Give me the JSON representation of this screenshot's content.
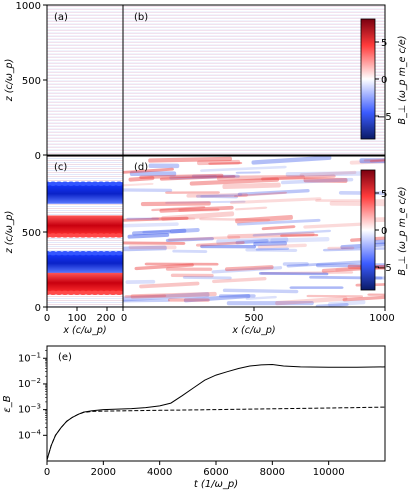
{
  "chart_data": [
    {
      "type": "heatmap",
      "panels": [
        "(a)",
        "(b)",
        "(c)",
        "(d)"
      ],
      "ylabel": "z (c/ω_p)",
      "xlabel": "x (c/ω_p)",
      "y_ticks": [
        "0",
        "500",
        "1000"
      ],
      "x_ticks_left": [
        "0",
        "100",
        "200"
      ],
      "x_ticks_right": [
        "0",
        "500",
        "1000"
      ],
      "ylim": [
        0,
        1000
      ],
      "xlim_left": [
        0,
        250
      ],
      "xlim_right": [
        0,
        1000
      ],
      "colorbar": {
        "label": "B_⊥ (ω_p m_e c/e)",
        "ticks": [
          "5",
          "0",
          "−5"
        ],
        "range": [
          -8,
          8
        ],
        "colormap": "seismic",
        "colors": {
          "low": "#0a1a66",
          "mid_low": "#3b5bff",
          "zero": "#ffffff",
          "mid_high": "#ff3b3b",
          "high": "#7a0010"
        }
      },
      "features": {
        "panel_c_structures": [
          {
            "z": 750,
            "sign": "negative"
          },
          {
            "z": 540,
            "sign": "positive"
          },
          {
            "z": 290,
            "sign": "negative"
          },
          {
            "z": 160,
            "sign": "positive"
          }
        ]
      }
    },
    {
      "type": "line",
      "panel": "(e)",
      "xlabel": "t (1/ω_p)",
      "ylabel": "ε_B",
      "x_ticks": [
        "0",
        "2000",
        "4000",
        "6000",
        "8000",
        "10000"
      ],
      "y_ticks": [
        "10^{-4}",
        "10^{-3}",
        "10^{-2}",
        "10^{-1}"
      ],
      "yscale": "log",
      "xlim": [
        0,
        12000
      ],
      "ylim": [
        1e-05,
        0.3
      ],
      "series": [
        {
          "style": "solid",
          "x": [
            0,
            150,
            300,
            500,
            700,
            900,
            1100,
            1300,
            1600,
            2000,
            2500,
            3000,
            3500,
            4000,
            4400,
            4800,
            5200,
            5600,
            6000,
            6400,
            6800,
            7200,
            7600,
            8000,
            8400,
            9000,
            10000,
            11000,
            12000
          ],
          "y": [
            1.1e-05,
            4e-05,
            0.0001,
            0.0002,
            0.00035,
            0.0005,
            0.00065,
            0.0008,
            0.0009,
            0.001,
            0.00105,
            0.0011,
            0.0012,
            0.0014,
            0.0018,
            0.0035,
            0.007,
            0.014,
            0.022,
            0.03,
            0.04,
            0.05,
            0.055,
            0.057,
            0.05,
            0.046,
            0.045,
            0.045,
            0.046
          ]
        },
        {
          "style": "dashed",
          "x": [
            0,
            150,
            300,
            500,
            700,
            900,
            1100,
            1300,
            1600,
            2000,
            3000,
            4000,
            5000,
            6000,
            7000,
            8000,
            9000,
            10000,
            11000,
            12000
          ],
          "y": [
            1.1e-05,
            4e-05,
            0.0001,
            0.0002,
            0.00035,
            0.0005,
            0.00065,
            0.00078,
            0.00085,
            0.00088,
            0.00091,
            0.00094,
            0.00097,
            0.001,
            0.00104,
            0.00108,
            0.00112,
            0.00116,
            0.0012,
            0.00125
          ]
        }
      ]
    }
  ]
}
